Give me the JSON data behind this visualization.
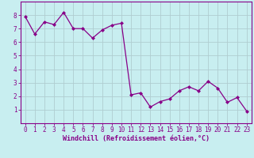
{
  "x": [
    0,
    1,
    2,
    3,
    4,
    5,
    6,
    7,
    8,
    9,
    10,
    11,
    12,
    13,
    14,
    15,
    16,
    17,
    18,
    19,
    20,
    21,
    22,
    23
  ],
  "y": [
    7.9,
    6.6,
    7.5,
    7.3,
    8.2,
    7.0,
    7.0,
    6.3,
    6.9,
    7.25,
    7.4,
    2.1,
    2.25,
    1.2,
    1.6,
    1.8,
    2.4,
    2.7,
    2.4,
    3.1,
    2.6,
    1.55,
    1.9,
    0.9
  ],
  "line_color": "#880088",
  "marker": "D",
  "marker_size": 2.0,
  "linewidth": 0.9,
  "bg_color": "#c8eef0",
  "grid_color": "#b0cdd0",
  "xlim": [
    -0.5,
    23.5
  ],
  "ylim": [
    0,
    9
  ],
  "yticks": [
    1,
    2,
    3,
    4,
    5,
    6,
    7,
    8
  ],
  "xticks": [
    0,
    1,
    2,
    3,
    4,
    5,
    6,
    7,
    8,
    9,
    10,
    11,
    12,
    13,
    14,
    15,
    16,
    17,
    18,
    19,
    20,
    21,
    22,
    23
  ],
  "tick_fontsize": 5.5,
  "xlabel": "Windchill (Refroidissement éolien,°C)",
  "xlabel_fontsize": 6.0,
  "axis_color": "#880088"
}
